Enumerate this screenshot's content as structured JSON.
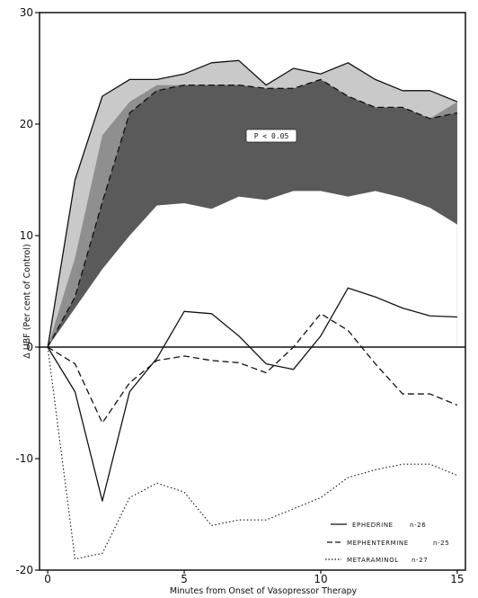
{
  "chart_data": {
    "type": "line",
    "title": "",
    "xlabel": "Minutes from Onset of Vasopressor Therapy",
    "ylabel": "Δ UBF (Per cent of Control)",
    "xlim": [
      -0.3,
      15.3
    ],
    "ylim": [
      -20,
      30
    ],
    "x_ticks": [
      0,
      5,
      10,
      15
    ],
    "y_ticks": [
      -20,
      -10,
      0,
      10,
      20,
      30
    ],
    "annotation": "P < 0.05",
    "legend": {
      "placement": "bottom-right"
    },
    "x": [
      0,
      1,
      2,
      3,
      4,
      5,
      6,
      7,
      8,
      9,
      10,
      11,
      12,
      13,
      14,
      15
    ],
    "bands": [
      {
        "role": "upper",
        "values": [
          0,
          15,
          22.5,
          24,
          24,
          24.5,
          25.5,
          25.7,
          23.5,
          25,
          24.5,
          25.5,
          24,
          23,
          23,
          22
        ],
        "fill": "#c9c9c9"
      },
      {
        "role": "middle",
        "values": [
          0,
          8,
          19,
          22,
          23.5,
          23.5,
          23.5,
          23.5,
          23.2,
          23.2,
          24,
          22.5,
          21.5,
          21.5,
          20.5,
          22
        ],
        "fill": "#8f8f8f"
      },
      {
        "role": "dark",
        "values": [
          0,
          4.5,
          13,
          21,
          23,
          23.5,
          23.5,
          23.5,
          23.2,
          23.2,
          24,
          22.5,
          21.5,
          21.5,
          20.5,
          21
        ],
        "fill": "#5a5a5a"
      },
      {
        "role": "lower",
        "values": [
          0,
          3.5,
          7,
          10,
          12.7,
          12.9,
          12.4,
          13.5,
          13.2,
          14,
          14,
          13.5,
          14,
          13.4,
          12.5,
          11
        ],
        "fill": "#ffffff"
      }
    ],
    "series": [
      {
        "name": "EPHEDRINE",
        "n": "n-26",
        "dash": "solid",
        "values": [
          0,
          -4,
          -13.8,
          -4,
          -1,
          3.2,
          3,
          1,
          -1.5,
          -2,
          1,
          5.3,
          4.5,
          3.5,
          2.8,
          2.7
        ]
      },
      {
        "name": "MEPHENTERMINE",
        "n": "n-25",
        "dash": "dashed",
        "values": [
          0,
          -1.5,
          -6.8,
          -3.2,
          -1.2,
          -0.8,
          -1.2,
          -1.4,
          -2.3,
          0,
          3,
          1.5,
          -1.5,
          -4.2,
          -4.2,
          -5.2
        ]
      },
      {
        "name": "METARAMINOL",
        "n": "n-27",
        "dash": "dotted",
        "values": [
          0,
          -19,
          -18.5,
          -13.5,
          -12.2,
          -13,
          -16,
          -15.5,
          -15.5,
          -14.5,
          -13.5,
          -11.7,
          -11,
          -10.5,
          -10.5,
          -11.5
        ]
      },
      {
        "name": "",
        "n": "",
        "dash": "solid",
        "values": [
          0,
          15,
          22.5,
          24,
          24,
          24.5,
          25.5,
          25.7,
          23.5,
          25,
          24.5,
          25.5,
          24,
          23,
          23,
          22
        ]
      },
      {
        "name": "",
        "n": "",
        "dash": "dashed",
        "values": [
          0,
          4.5,
          13,
          21,
          23,
          23.5,
          23.5,
          23.5,
          23.2,
          23.2,
          24,
          22.5,
          21.5,
          21.5,
          20.5,
          21
        ]
      }
    ]
  }
}
